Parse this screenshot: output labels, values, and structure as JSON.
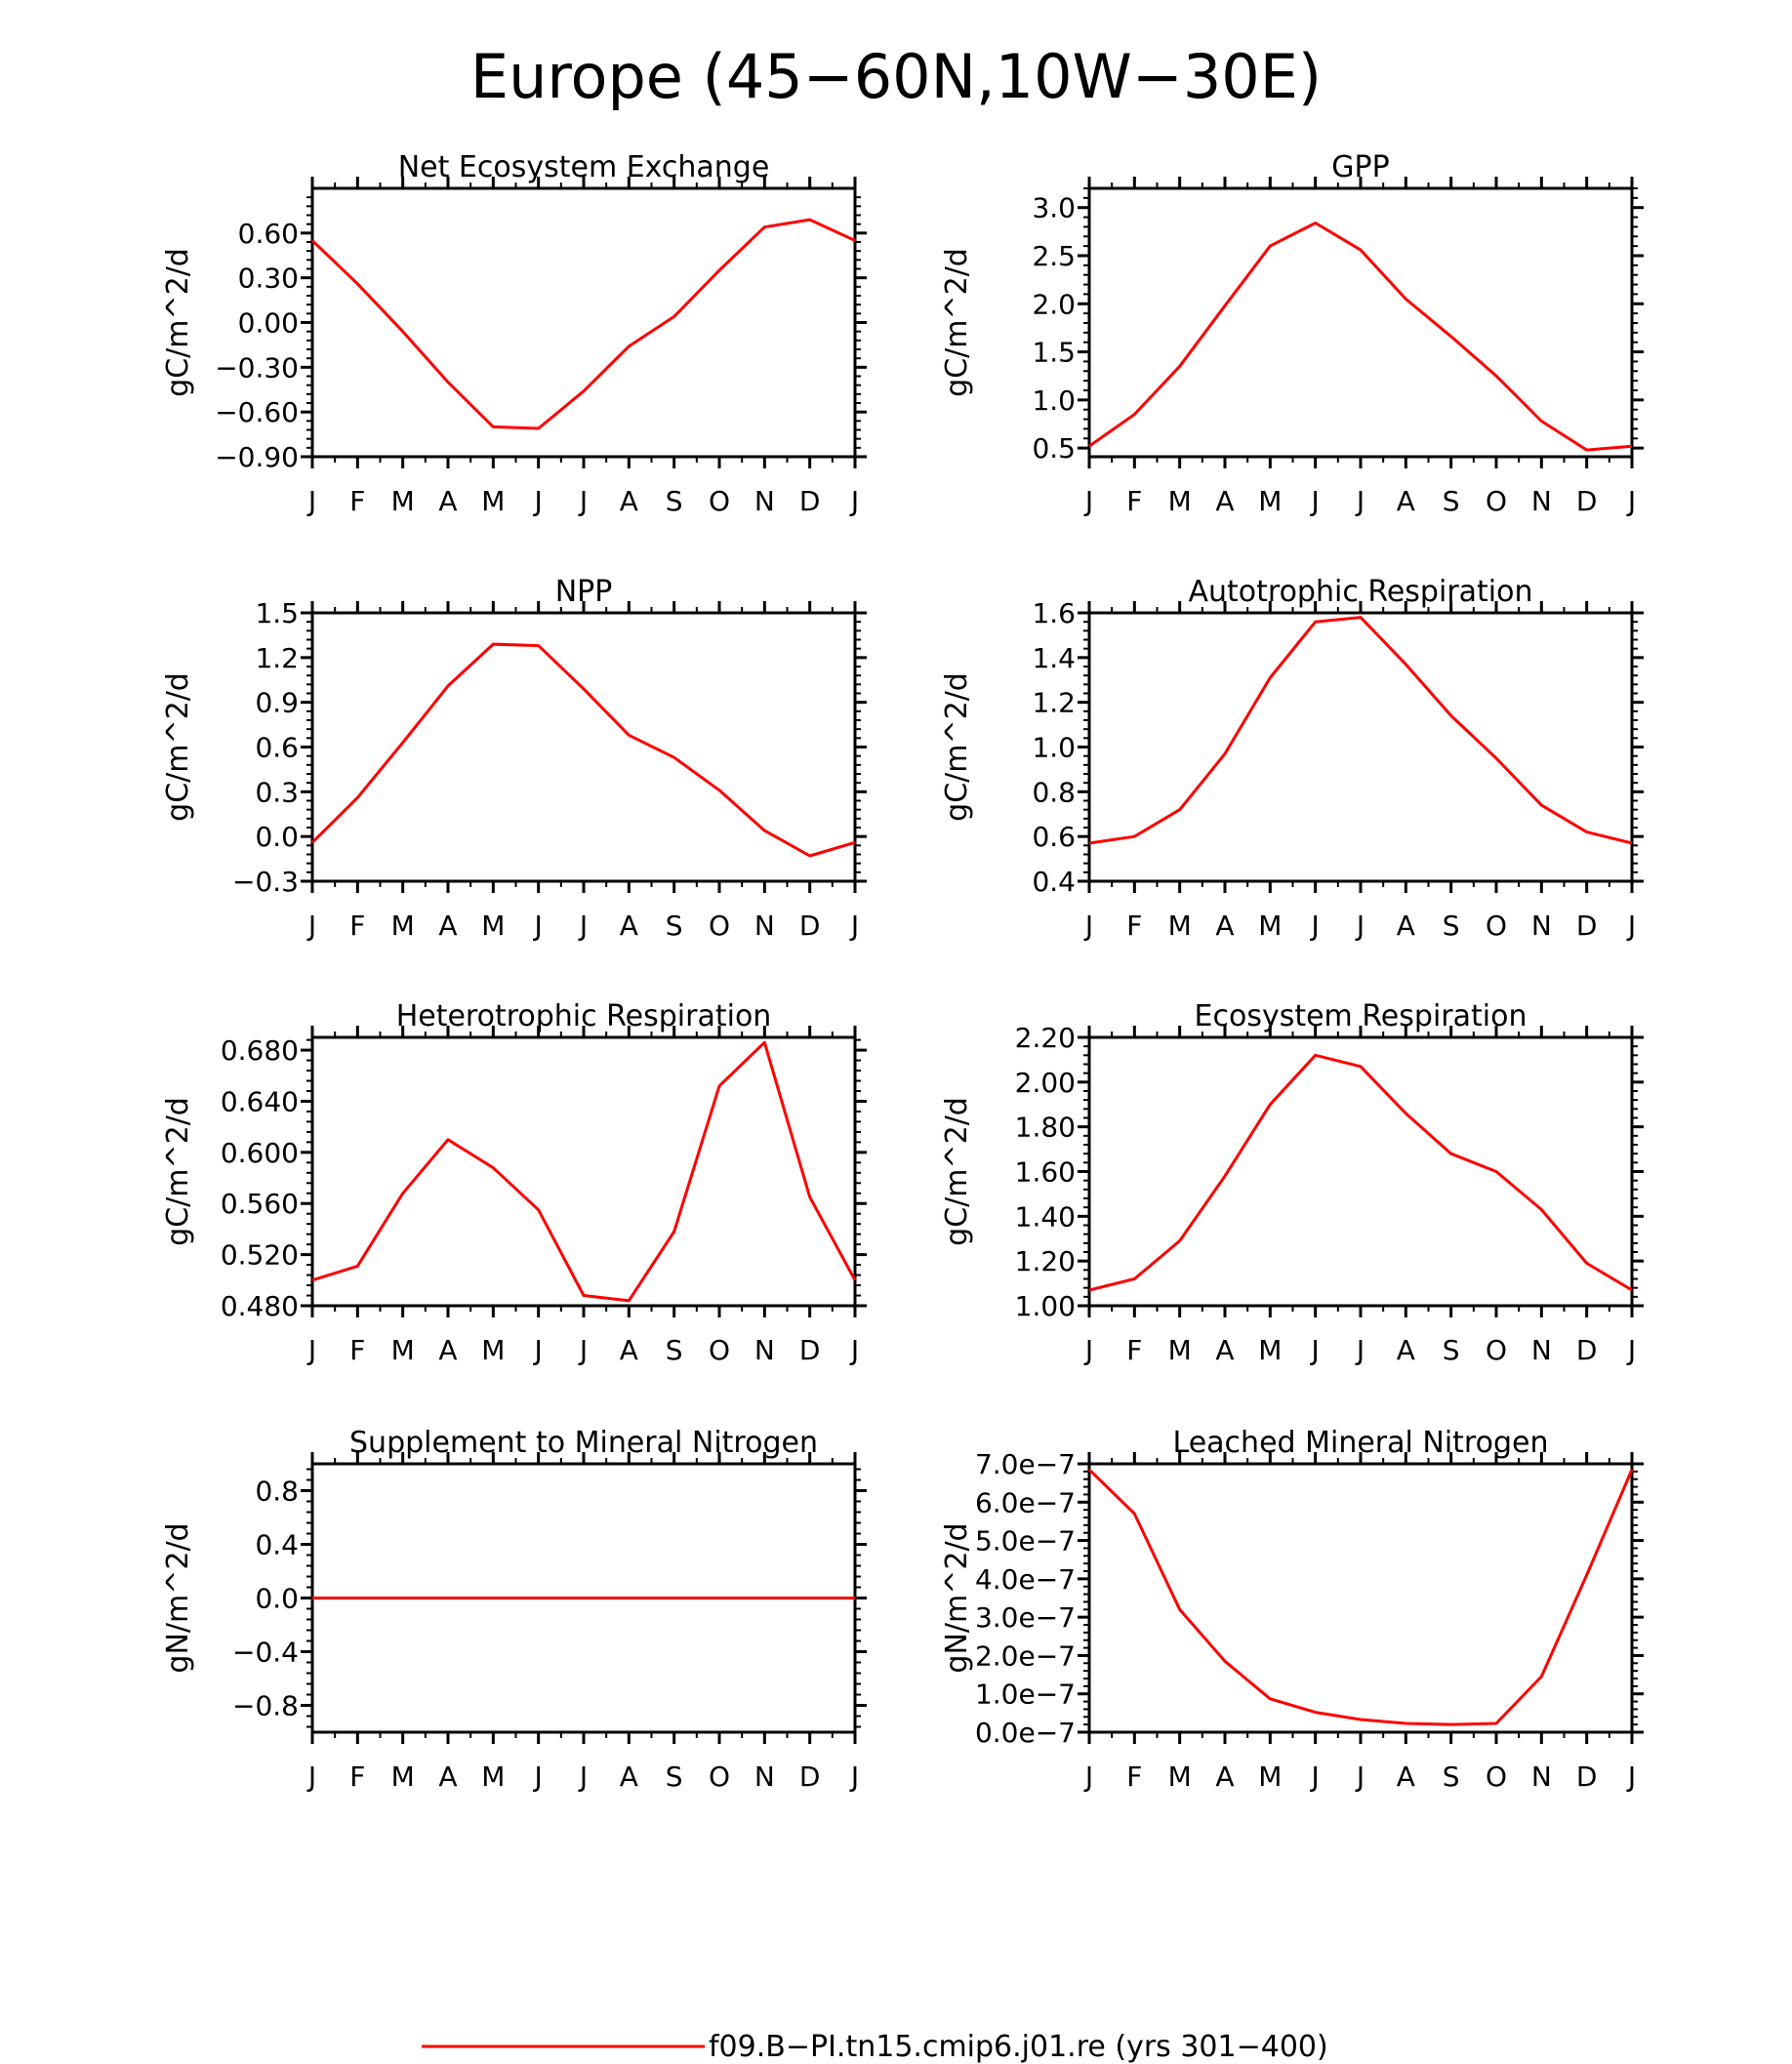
{
  "figure": {
    "title": "Europe (45−60N,10W−30E)",
    "legend": {
      "label": "f09.B−PI.tn15.cmip6.j01.re (yrs 301−400)",
      "color": "#ff0000"
    }
  },
  "chart_data": [
    {
      "type": "line",
      "title": "Net Ecosystem Exchange",
      "ylabel": "gC/m^2/d",
      "categories": [
        "J",
        "F",
        "M",
        "A",
        "M",
        "J",
        "J",
        "A",
        "S",
        "O",
        "N",
        "D",
        "J"
      ],
      "ylim": [
        -0.9,
        0.9
      ],
      "yticks": [
        -0.9,
        -0.6,
        -0.3,
        0.0,
        0.3,
        0.6
      ],
      "ytick_labels": [
        "−0.90",
        "−0.60",
        "−0.30",
        "0.00",
        "0.30",
        "0.60"
      ],
      "series": [
        {
          "values": [
            0.55,
            0.26,
            -0.06,
            -0.4,
            -0.7,
            -0.71,
            -0.46,
            -0.16,
            0.04,
            0.35,
            0.64,
            0.69,
            0.55
          ]
        }
      ]
    },
    {
      "type": "line",
      "title": "GPP",
      "ylabel": "gC/m^2/d",
      "categories": [
        "J",
        "F",
        "M",
        "A",
        "M",
        "J",
        "J",
        "A",
        "S",
        "O",
        "N",
        "D",
        "J"
      ],
      "ylim": [
        0.41,
        3.2
      ],
      "yticks": [
        0.5,
        1.0,
        1.5,
        2.0,
        2.5,
        3.0
      ],
      "ytick_labels": [
        "0.5",
        "1.0",
        "1.5",
        "2.0",
        "2.5",
        "3.0"
      ],
      "series": [
        {
          "values": [
            0.52,
            0.85,
            1.35,
            1.98,
            2.6,
            2.84,
            2.56,
            2.05,
            1.66,
            1.25,
            0.78,
            0.48,
            0.52
          ]
        }
      ]
    },
    {
      "type": "line",
      "title": "NPP",
      "ylabel": "gC/m^2/d",
      "categories": [
        "J",
        "F",
        "M",
        "A",
        "M",
        "J",
        "J",
        "A",
        "S",
        "O",
        "N",
        "D",
        "J"
      ],
      "ylim": [
        -0.3,
        1.5
      ],
      "yticks": [
        -0.3,
        0.0,
        0.3,
        0.6,
        0.9,
        1.2,
        1.5
      ],
      "ytick_labels": [
        "−0.3",
        "0.0",
        "0.3",
        "0.6",
        "0.9",
        "1.2",
        "1.5"
      ],
      "series": [
        {
          "values": [
            -0.04,
            0.26,
            0.63,
            1.01,
            1.29,
            1.28,
            0.99,
            0.68,
            0.53,
            0.31,
            0.04,
            -0.13,
            -0.04
          ]
        }
      ]
    },
    {
      "type": "line",
      "title": "Autotrophic Respiration",
      "ylabel": "gC/m^2/d",
      "categories": [
        "J",
        "F",
        "M",
        "A",
        "M",
        "J",
        "J",
        "A",
        "S",
        "O",
        "N",
        "D",
        "J"
      ],
      "ylim": [
        0.4,
        1.6
      ],
      "yticks": [
        0.4,
        0.6,
        0.8,
        1.0,
        1.2,
        1.4,
        1.6
      ],
      "ytick_labels": [
        "0.4",
        "0.6",
        "0.8",
        "1.0",
        "1.2",
        "1.4",
        "1.6"
      ],
      "series": [
        {
          "values": [
            0.57,
            0.6,
            0.72,
            0.97,
            1.31,
            1.56,
            1.58,
            1.37,
            1.14,
            0.95,
            0.74,
            0.62,
            0.57
          ]
        }
      ]
    },
    {
      "type": "line",
      "title": "Heterotrophic Respiration",
      "ylabel": "gC/m^2/d",
      "categories": [
        "J",
        "F",
        "M",
        "A",
        "M",
        "J",
        "J",
        "A",
        "S",
        "O",
        "N",
        "D",
        "J"
      ],
      "ylim": [
        0.48,
        0.69
      ],
      "yticks": [
        0.48,
        0.52,
        0.56,
        0.6,
        0.64,
        0.68
      ],
      "ytick_labels": [
        "0.480",
        "0.520",
        "0.560",
        "0.600",
        "0.640",
        "0.680"
      ],
      "series": [
        {
          "values": [
            0.5,
            0.511,
            0.568,
            0.61,
            0.588,
            0.555,
            0.488,
            0.484,
            0.538,
            0.652,
            0.686,
            0.565,
            0.5
          ]
        }
      ]
    },
    {
      "type": "line",
      "title": "Ecosystem Respiration",
      "ylabel": "gC/m^2/d",
      "categories": [
        "J",
        "F",
        "M",
        "A",
        "M",
        "J",
        "J",
        "A",
        "S",
        "O",
        "N",
        "D",
        "J"
      ],
      "ylim": [
        1.0,
        2.2
      ],
      "yticks": [
        1.0,
        1.2,
        1.4,
        1.6,
        1.8,
        2.0,
        2.2
      ],
      "ytick_labels": [
        "1.00",
        "1.20",
        "1.40",
        "1.60",
        "1.80",
        "2.00",
        "2.20"
      ],
      "series": [
        {
          "values": [
            1.07,
            1.12,
            1.29,
            1.58,
            1.9,
            2.12,
            2.07,
            1.86,
            1.68,
            1.6,
            1.43,
            1.19,
            1.07
          ]
        }
      ]
    },
    {
      "type": "line",
      "title": "Supplement to Mineral Nitrogen",
      "ylabel": "gN/m^2/d",
      "categories": [
        "J",
        "F",
        "M",
        "A",
        "M",
        "J",
        "J",
        "A",
        "S",
        "O",
        "N",
        "D",
        "J"
      ],
      "ylim": [
        -1.0,
        1.0
      ],
      "yticks": [
        -0.8,
        -0.4,
        0.0,
        0.4,
        0.8
      ],
      "ytick_labels": [
        "−0.8",
        "−0.4",
        "0.0",
        "0.4",
        "0.8"
      ],
      "series": [
        {
          "values": [
            0,
            0,
            0,
            0,
            0,
            0,
            0,
            0,
            0,
            0,
            0,
            0,
            0
          ]
        }
      ]
    },
    {
      "type": "line",
      "title": "Leached Mineral Nitrogen",
      "ylabel": "gN/m^2/d",
      "categories": [
        "J",
        "F",
        "M",
        "A",
        "M",
        "J",
        "J",
        "A",
        "S",
        "O",
        "N",
        "D",
        "J"
      ],
      "ylim": [
        0.0,
        7e-07
      ],
      "yticks": [
        0.0,
        1e-07,
        2e-07,
        3e-07,
        4e-07,
        5e-07,
        6e-07,
        7e-07
      ],
      "ytick_labels": [
        "0.0e−7",
        "1.0e−7",
        "2.0e−7",
        "3.0e−7",
        "4.0e−7",
        "5.0e−7",
        "6.0e−7",
        "7.0e−7"
      ],
      "series": [
        {
          "values": [
            6.85e-07,
            5.7e-07,
            3.2e-07,
            1.85e-07,
            8.7e-08,
            5.2e-08,
            3.3e-08,
            2.3e-08,
            2e-08,
            2.3e-08,
            1.45e-07,
            4.1e-07,
            6.85e-07
          ]
        }
      ]
    }
  ]
}
